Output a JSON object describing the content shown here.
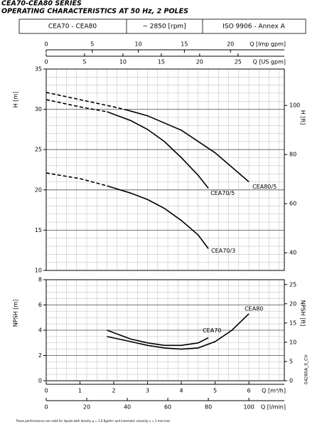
{
  "header": {
    "title_line1": "CEA70-CEA80 SERIES",
    "title_line2": "OPERATING CHARACTERISTICS AT 50 Hz, 2 POLES",
    "cells": [
      "CEA70 - CEA80",
      "~ 2850 [rpm]",
      "ISO 9906 - Annex A"
    ]
  },
  "chart_data": [
    {
      "type": "line",
      "ylabel": "H [m]",
      "y2label": "H [ft]",
      "xlim": [
        0,
        7.05
      ],
      "ylim": [
        10,
        35
      ],
      "yticks": [
        10,
        15,
        20,
        25,
        30,
        35
      ],
      "y2lim": [
        32.81,
        114.83
      ],
      "y2ticks": [
        40,
        60,
        80,
        100
      ],
      "grid": true,
      "x_axes": [
        {
          "label": "Q [Imp gpm]",
          "xlim": [
            0,
            25.85
          ],
          "xticks": [
            0,
            5,
            10,
            15,
            20
          ]
        },
        {
          "label": "Q [US gpm]",
          "xlim": [
            0,
            31.04
          ],
          "xticks": [
            0,
            5,
            10,
            15,
            20,
            25
          ]
        }
      ],
      "series": [
        {
          "name": "CEA80/5",
          "color": "#000000",
          "x": [
            2.4,
            3,
            4,
            5,
            6
          ],
          "values": [
            29.9,
            29.2,
            27.4,
            24.6,
            21.0
          ],
          "extrapolated_x": [
            0,
            1,
            2,
            2.4
          ],
          "extrapolated_values": [
            32.1,
            31.2,
            30.3,
            29.9
          ]
        },
        {
          "name": "CEA70/5",
          "color": "#000000",
          "x": [
            1.8,
            2.5,
            3,
            3.5,
            4,
            4.5,
            4.8
          ],
          "values": [
            29.7,
            28.6,
            27.5,
            26.0,
            24.0,
            21.8,
            20.2
          ],
          "extrapolated_x": [
            0,
            1,
            1.8
          ],
          "extrapolated_values": [
            31.2,
            30.3,
            29.7
          ]
        },
        {
          "name": "CEA70/3",
          "color": "#000000",
          "x": [
            1.8,
            2.5,
            3,
            3.5,
            4,
            4.5,
            4.8
          ],
          "values": [
            20.5,
            19.6,
            18.8,
            17.7,
            16.2,
            14.4,
            12.7
          ],
          "extrapolated_x": [
            0,
            1,
            1.8
          ],
          "extrapolated_values": [
            22.1,
            21.4,
            20.5
          ]
        }
      ]
    },
    {
      "type": "line",
      "ylabel": "NPSH [m]",
      "y2label": "NPSH [ft]",
      "xlabel": "Q [m³/h]",
      "xlim": [
        0,
        7.05
      ],
      "xticks": [
        0,
        1,
        2,
        3,
        4,
        5,
        6
      ],
      "ylim": [
        0,
        8
      ],
      "yticks": [
        0,
        2,
        4,
        6,
        8
      ],
      "y2lim": [
        0,
        26.25
      ],
      "y2ticks": [
        0,
        5,
        10,
        15,
        20,
        25
      ],
      "grid": true,
      "x_axes": [
        {
          "label": "Q [l/min]",
          "xlim": [
            0,
            117.5
          ],
          "xticks": [
            0,
            20,
            40,
            60,
            80,
            100
          ]
        }
      ],
      "series": [
        {
          "name": "CEA80",
          "color": "#000000",
          "x": [
            1.8,
            2.5,
            3,
            3.5,
            4,
            4.5,
            5,
            5.5,
            6
          ],
          "values": [
            3.5,
            3.1,
            2.8,
            2.6,
            2.5,
            2.6,
            3.1,
            4.0,
            5.3
          ]
        },
        {
          "name": "CEA70",
          "color": "#000000",
          "x": [
            1.8,
            2.5,
            3,
            3.5,
            4,
            4.5,
            4.8
          ],
          "values": [
            4.0,
            3.3,
            3.0,
            2.8,
            2.8,
            3.0,
            3.4
          ]
        }
      ]
    }
  ],
  "footnote": "These performances are valid for liquids with density ρ = 1.0 Kg/dm³ and kinematic viscosity ν = 1 mm²/sec.",
  "code": "04280A_0_CH"
}
